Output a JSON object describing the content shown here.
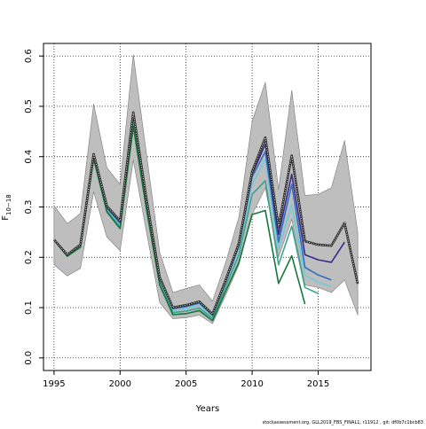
{
  "chart_data": {
    "type": "line",
    "xlabel": "Years",
    "ylabel_main": "F",
    "ylabel_sub": "10−18",
    "footer": "stockassessment.org, GLL2019_FBS_FINAL1, r11912 , git: df0b7c1bcb83",
    "xlim": [
      1994.2,
      2019.0
    ],
    "ylim": [
      -0.025,
      0.625
    ],
    "x_ticks": [
      1995,
      2000,
      2005,
      2010,
      2015
    ],
    "y_ticks": [
      0.0,
      0.1,
      0.2,
      0.3,
      0.4,
      0.5,
      0.6
    ],
    "x_tick_labels": [
      "1995",
      "2000",
      "2005",
      "2010",
      "2015"
    ],
    "y_tick_labels": [
      "0.0",
      "0.1",
      "0.2",
      "0.3",
      "0.4",
      "0.5",
      "0.6"
    ],
    "grid": true,
    "colors": {
      "band": "#bebebe",
      "final": "#2b2b2b",
      "dotted": "#ffffff",
      "peel1": "#3a2a8c",
      "peel2": "#2f6fc4",
      "peel3": "#74c8d8",
      "peel4": "#3aa390",
      "peel5": "#16753a"
    },
    "band": {
      "x": [
        1995,
        1996,
        1997,
        1998,
        1999,
        2000,
        2001,
        2002,
        2003,
        2004,
        2005,
        2006,
        2007,
        2008,
        2009,
        2010,
        2011,
        2012,
        2013,
        2014,
        2015,
        2016,
        2017,
        2018
      ],
      "upper": [
        0.303,
        0.267,
        0.287,
        0.505,
        0.378,
        0.345,
        0.603,
        0.405,
        0.21,
        0.13,
        0.138,
        0.145,
        0.113,
        0.19,
        0.28,
        0.47,
        0.548,
        0.335,
        0.532,
        0.323,
        0.325,
        0.338,
        0.432,
        0.25
      ],
      "lower": [
        0.185,
        0.163,
        0.178,
        0.33,
        0.24,
        0.213,
        0.393,
        0.25,
        0.11,
        0.078,
        0.08,
        0.085,
        0.068,
        0.125,
        0.185,
        0.285,
        0.338,
        0.2,
        0.275,
        0.145,
        0.14,
        0.13,
        0.155,
        0.085
      ]
    },
    "series": [
      {
        "key": "final",
        "x": [
          1995,
          1996,
          1997,
          1998,
          1999,
          2000,
          2001,
          2002,
          2003,
          2004,
          2005,
          2006,
          2007,
          2008,
          2009,
          2010,
          2011,
          2012,
          2013,
          2014,
          2015,
          2016,
          2017,
          2018
        ],
        "values": [
          0.235,
          0.205,
          0.225,
          0.405,
          0.302,
          0.272,
          0.488,
          0.315,
          0.16,
          0.1,
          0.105,
          0.112,
          0.087,
          0.155,
          0.228,
          0.37,
          0.438,
          0.26,
          0.402,
          0.232,
          0.225,
          0.223,
          0.268,
          0.147
        ]
      },
      {
        "key": "peel1",
        "x": [
          1995,
          1996,
          1997,
          1998,
          1999,
          2000,
          2001,
          2002,
          2003,
          2004,
          2005,
          2006,
          2007,
          2008,
          2009,
          2010,
          2011,
          2012,
          2013,
          2014,
          2015,
          2016,
          2017
        ],
        "values": [
          0.235,
          0.205,
          0.225,
          0.405,
          0.3,
          0.27,
          0.488,
          0.313,
          0.16,
          0.1,
          0.104,
          0.111,
          0.086,
          0.153,
          0.225,
          0.365,
          0.425,
          0.245,
          0.365,
          0.205,
          0.195,
          0.19,
          0.23
        ]
      },
      {
        "key": "peel2",
        "x": [
          1995,
          1996,
          1997,
          1998,
          1999,
          2000,
          2001,
          2002,
          2003,
          2004,
          2005,
          2006,
          2007,
          2008,
          2009,
          2010,
          2011,
          2012,
          2013,
          2014,
          2015,
          2016
        ],
        "values": [
          0.235,
          0.205,
          0.224,
          0.403,
          0.298,
          0.268,
          0.485,
          0.31,
          0.157,
          0.098,
          0.102,
          0.109,
          0.085,
          0.151,
          0.223,
          0.36,
          0.41,
          0.23,
          0.345,
          0.18,
          0.165,
          0.155
        ]
      },
      {
        "key": "peel3",
        "x": [
          1995,
          1996,
          1997,
          1998,
          1999,
          2000,
          2001,
          2002,
          2003,
          2004,
          2005,
          2006,
          2007,
          2008,
          2009,
          2010,
          2011,
          2012,
          2013,
          2014,
          2015,
          2016
        ],
        "values": [
          0.234,
          0.204,
          0.222,
          0.4,
          0.295,
          0.265,
          0.475,
          0.305,
          0.152,
          0.094,
          0.098,
          0.104,
          0.082,
          0.148,
          0.218,
          0.345,
          0.395,
          0.215,
          0.305,
          0.165,
          0.15,
          0.142
        ]
      },
      {
        "key": "peel4",
        "x": [
          1995,
          1996,
          1997,
          1998,
          1999,
          2000,
          2001,
          2002,
          2003,
          2004,
          2005,
          2006,
          2007,
          2008,
          2009,
          2010,
          2011,
          2012,
          2013,
          2014,
          2015
        ],
        "values": [
          0.234,
          0.203,
          0.221,
          0.398,
          0.292,
          0.26,
          0.465,
          0.3,
          0.148,
          0.09,
          0.093,
          0.099,
          0.079,
          0.142,
          0.205,
          0.325,
          0.352,
          0.185,
          0.262,
          0.14,
          0.128
        ]
      },
      {
        "key": "peel5",
        "x": [
          1995,
          1996,
          1997,
          1998,
          1999,
          2000,
          2001,
          2002,
          2003,
          2004,
          2005,
          2006,
          2007,
          2008,
          2009,
          2010,
          2011,
          2012,
          2013,
          2014
        ],
        "values": [
          0.234,
          0.202,
          0.22,
          0.396,
          0.29,
          0.257,
          0.46,
          0.295,
          0.145,
          0.086,
          0.088,
          0.094,
          0.074,
          0.133,
          0.19,
          0.285,
          0.293,
          0.148,
          0.203,
          0.107
        ]
      }
    ]
  }
}
